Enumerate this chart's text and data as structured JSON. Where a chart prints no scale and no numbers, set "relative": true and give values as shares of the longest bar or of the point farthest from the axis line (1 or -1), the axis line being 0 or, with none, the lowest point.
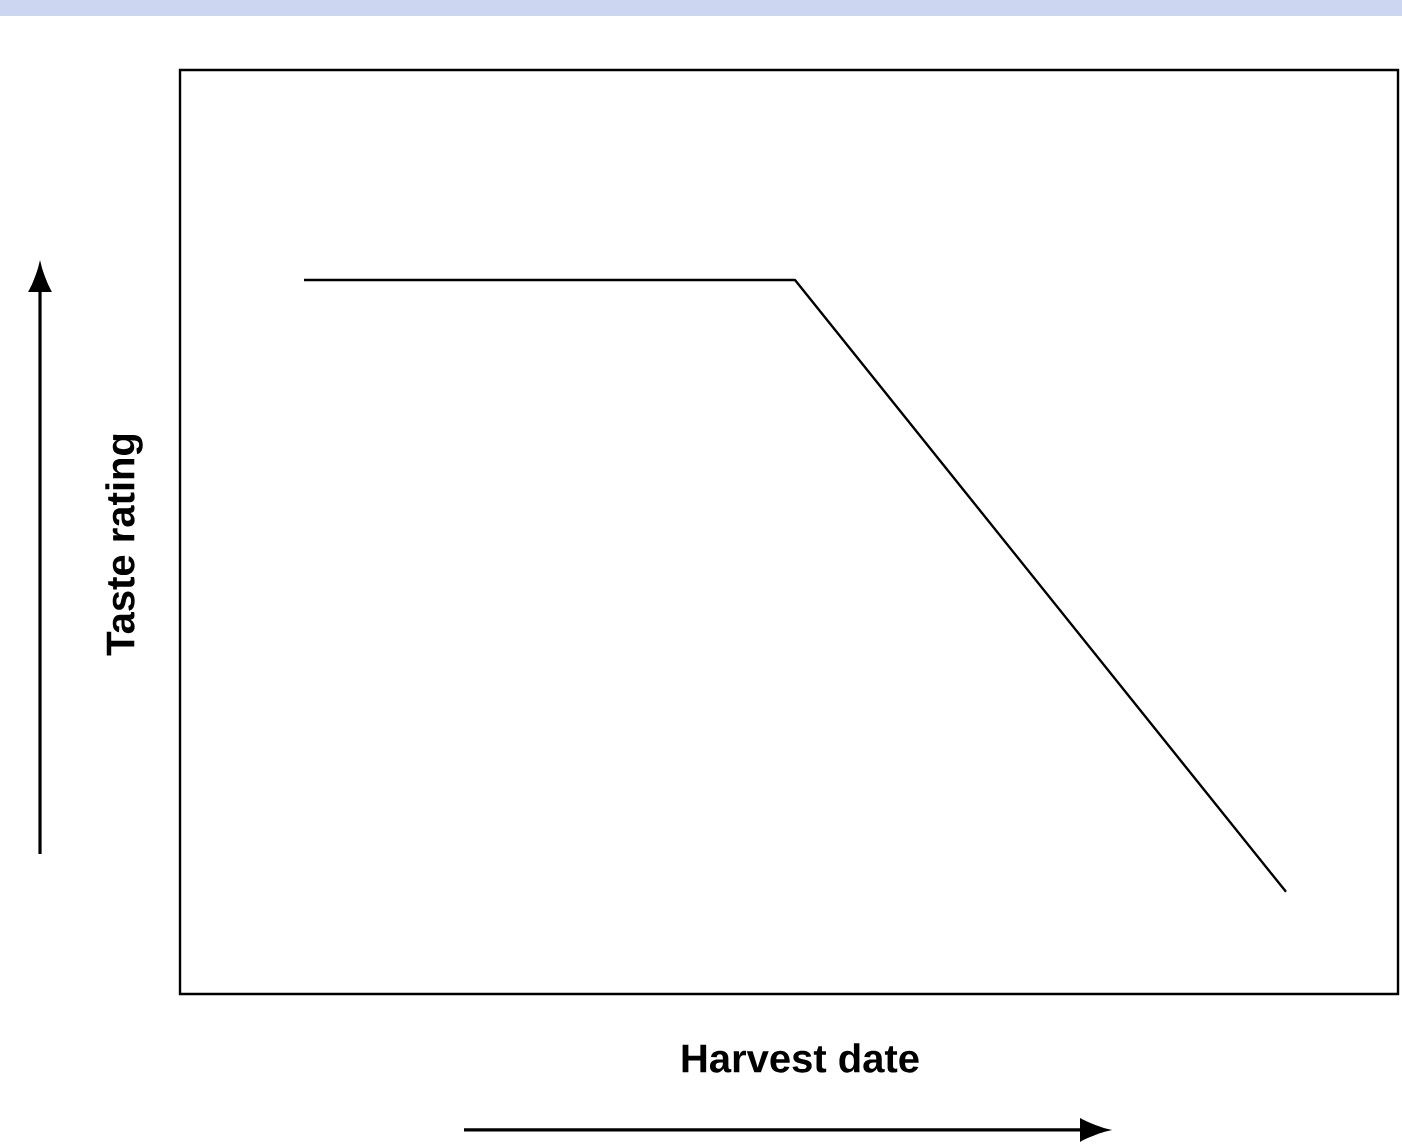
{
  "chart_data": {
    "type": "line",
    "xlabel": "Harvest date",
    "ylabel": "Taste rating",
    "relative": true,
    "categories": [
      null,
      null,
      null
    ],
    "series": [
      {
        "color": "#000000",
        "values": [
          1,
          1,
          0.143
        ]
      }
    ]
  }
}
